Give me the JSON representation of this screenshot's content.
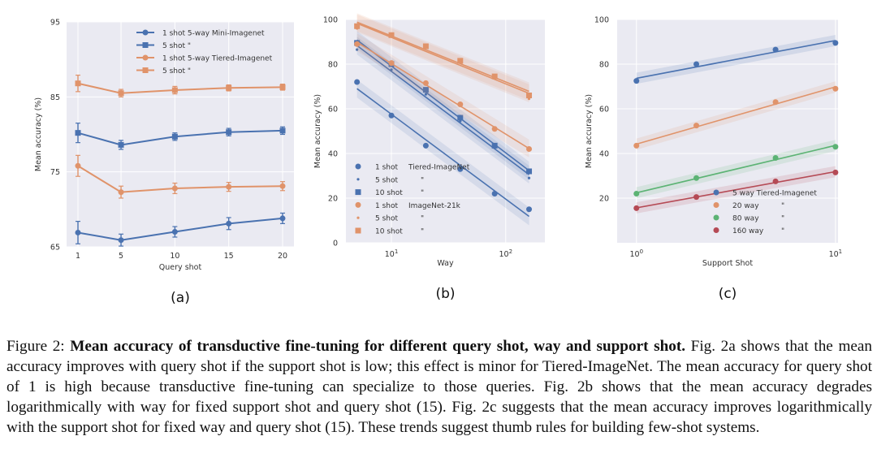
{
  "chart_data": [
    {
      "type": "line",
      "panel_label": "(a)",
      "xlabel": "Query shot",
      "ylabel": "Mean accuracy (%)",
      "x": [
        1,
        5,
        10,
        15,
        20
      ],
      "x_ticks": [
        "1",
        "5",
        "10",
        "15",
        "20"
      ],
      "ylim": [
        65,
        95
      ],
      "y_ticks": [
        "65",
        "75",
        "85",
        "95"
      ],
      "grid": true,
      "legend_position": "top-right",
      "series": [
        {
          "name": "1 shot 5-way Mini-Imagenet",
          "color": "#4a72b0",
          "marker": "circle",
          "values": [
            66.9,
            65.9,
            67.0,
            68.1,
            68.8
          ],
          "err": [
            1.5,
            0.8,
            0.7,
            0.8,
            0.7
          ]
        },
        {
          "name": "5 shot",
          "legend_suffix": "\"",
          "color": "#4a72b0",
          "marker": "square",
          "values": [
            80.2,
            78.6,
            79.7,
            80.3,
            80.5
          ],
          "err": [
            1.3,
            0.6,
            0.5,
            0.5,
            0.5
          ]
        },
        {
          "name": "1 shot 5-way Tiered-Imagenet",
          "color": "#e0936a",
          "marker": "circle",
          "values": [
            75.8,
            72.3,
            72.8,
            73.0,
            73.1
          ],
          "err": [
            1.4,
            0.8,
            0.7,
            0.6,
            0.6
          ]
        },
        {
          "name": "5 shot",
          "legend_suffix": "\"",
          "color": "#e0936a",
          "marker": "square",
          "values": [
            86.8,
            85.5,
            85.9,
            86.2,
            86.3
          ],
          "err": [
            1.1,
            0.5,
            0.5,
            0.4,
            0.4
          ]
        }
      ]
    },
    {
      "type": "scatter",
      "panel_label": "(b)",
      "xlabel": "Way",
      "ylabel": "Mean accuracy (%)",
      "xscale": "log",
      "xlim": [
        4,
        220
      ],
      "x_ticks": [
        "10^1",
        "10^2"
      ],
      "ylim": [
        0,
        100
      ],
      "y_ticks": [
        "0",
        "20",
        "40",
        "60",
        "80",
        "100"
      ],
      "grid": true,
      "legend_position": "bottom-left",
      "series": [
        {
          "name": "1 shot",
          "legend_note": "Tiered-ImageNet",
          "color": "#4a72b0",
          "marker": "circle",
          "x": [
            5,
            10,
            20,
            40,
            80,
            160
          ],
          "values": [
            72.0,
            57.0,
            43.5,
            33.0,
            22.0,
            15.0
          ]
        },
        {
          "name": "5 shot",
          "legend_note": "\"",
          "color": "#4a72b0",
          "marker": "dot",
          "x": [
            5,
            10,
            20,
            40,
            80,
            160
          ],
          "values": [
            86.5,
            77.5,
            66.5,
            54.5,
            42.5,
            29.0
          ]
        },
        {
          "name": "10 shot",
          "legend_note": "\"",
          "color": "#4a72b0",
          "marker": "square",
          "x": [
            5,
            10,
            20,
            40,
            80,
            160
          ],
          "values": [
            89.5,
            80.0,
            68.5,
            56.0,
            43.5,
            32.0
          ]
        },
        {
          "name": "1 shot",
          "legend_note": "ImageNet-21k",
          "color": "#e0936a",
          "marker": "circle",
          "x": [
            5,
            10,
            20,
            40,
            80,
            160
          ],
          "values": [
            89.0,
            80.5,
            71.5,
            62.0,
            51.0,
            42.0
          ]
        },
        {
          "name": "5 shot",
          "legend_note": "\"",
          "color": "#e0936a",
          "marker": "dot",
          "x": [
            5,
            10,
            20,
            40,
            80,
            160
          ],
          "values": [
            96.0,
            92.5,
            87.5,
            81.0,
            74.0,
            64.5
          ]
        },
        {
          "name": "10 shot",
          "legend_note": "\"",
          "color": "#e0936a",
          "marker": "square",
          "x": [
            5,
            10,
            20,
            40,
            80,
            160
          ],
          "values": [
            97.0,
            93.0,
            88.0,
            81.5,
            74.5,
            66.0
          ]
        }
      ]
    },
    {
      "type": "scatter",
      "panel_label": "(c)",
      "xlabel": "Support Shot",
      "ylabel": "Mean accuracy (%)",
      "xscale": "log",
      "xlim": [
        0.8,
        10.3
      ],
      "x_ticks": [
        "10^0",
        "10^1"
      ],
      "ylim": [
        0,
        100
      ],
      "y_ticks": [
        "20",
        "40",
        "60",
        "80",
        "100"
      ],
      "grid": true,
      "legend_position": "bottom-right",
      "series": [
        {
          "name": "5 way Tiered-Imagenet",
          "color": "#4a72b0",
          "marker": "circle",
          "x": [
            1,
            2,
            5,
            10
          ],
          "values": [
            72.5,
            80.0,
            86.5,
            89.5
          ]
        },
        {
          "name": "20 way",
          "legend_suffix": "\"",
          "color": "#e0936a",
          "marker": "circle",
          "x": [
            1,
            2,
            5,
            10
          ],
          "values": [
            43.5,
            52.5,
            63.0,
            69.0
          ]
        },
        {
          "name": "80 way",
          "legend_suffix": "\"",
          "color": "#5cb374",
          "marker": "circle",
          "x": [
            1,
            2,
            5,
            10
          ],
          "values": [
            22.0,
            29.0,
            38.0,
            43.0
          ]
        },
        {
          "name": "160 way",
          "legend_suffix": "\"",
          "color": "#b54a55",
          "marker": "circle",
          "x": [
            1,
            2,
            5,
            10
          ],
          "values": [
            15.5,
            20.5,
            27.5,
            31.5
          ]
        }
      ]
    }
  ],
  "caption": {
    "prefix": "Figure 2: ",
    "bold": "Mean accuracy of transductive fine-tuning for different query shot, way and support shot.",
    "body": " Fig. 2a shows that the mean accuracy improves with query shot if the support shot is low; this effect is minor for Tiered-ImageNet. The mean accuracy for query shot of 1 is high because transductive fine-tuning can specialize to those queries. Fig. 2b shows that the mean accuracy degrades logarithmically with way for fixed support shot and query shot (15). Fig. 2c suggests that the mean accuracy improves logarithmically with the support shot for fixed way and query shot (15). These trends suggest thumb rules for building few-shot systems."
  },
  "colors": {
    "plot_bg": "#eaeaf2",
    "grid": "#ffffff",
    "blue": "#4a72b0",
    "orange": "#e0936a",
    "green": "#5cb374",
    "red": "#b54a55"
  }
}
